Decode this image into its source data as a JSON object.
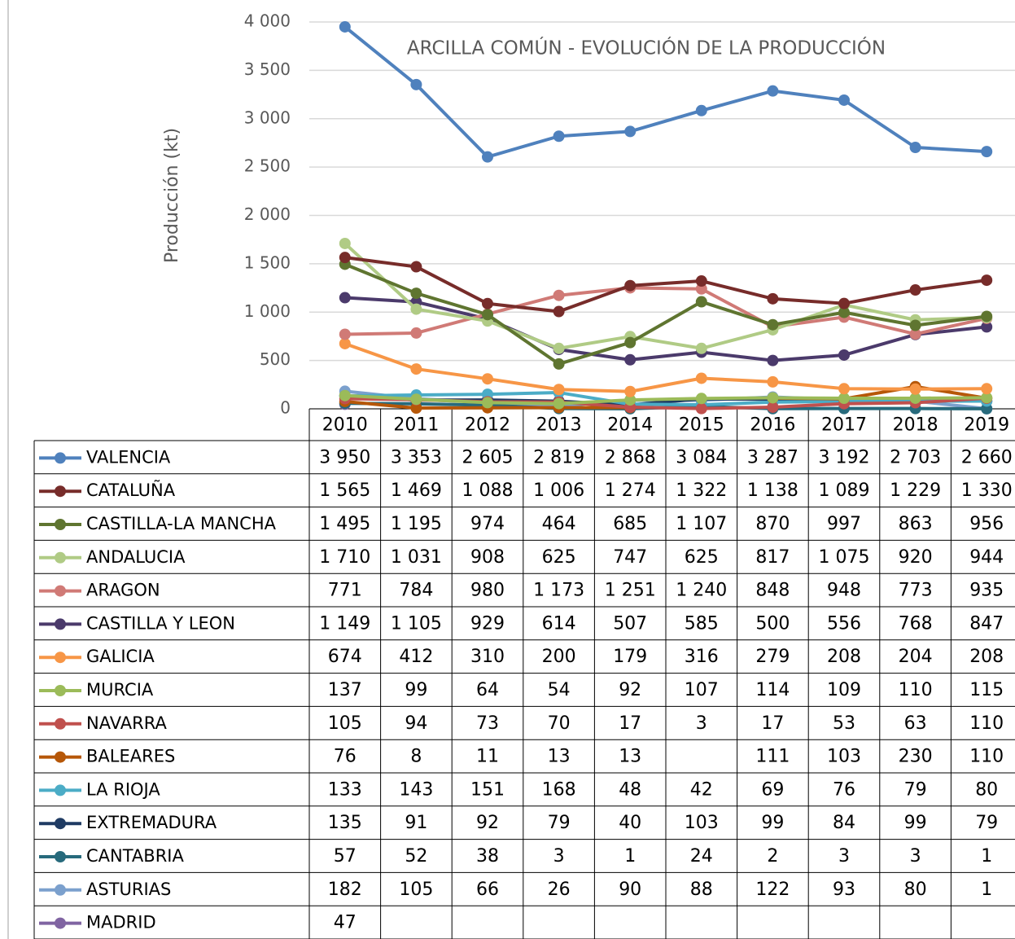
{
  "chart_data": {
    "type": "line",
    "title": "ARCILLA COMÚN - EVOLUCIÓN DE LA PRODUCCIÓN",
    "y_label": "Producción (kt)",
    "categories": [
      "2010",
      "2011",
      "2012",
      "2013",
      "2014",
      "2015",
      "2016",
      "2017",
      "2018",
      "2019"
    ],
    "ylim": [
      0,
      4000
    ],
    "yticks": [
      0,
      500,
      {
        "value": 1000,
        "label": "1 000"
      },
      {
        "value": 1500,
        "label": "1 500"
      },
      {
        "value": 2000,
        "label": "2 000"
      },
      {
        "value": 2500,
        "label": "2 500"
      },
      {
        "value": 3000,
        "label": "3 000"
      },
      {
        "value": 3500,
        "label": "3 500"
      },
      {
        "value": 4000,
        "label": "4 000"
      }
    ],
    "grid": true,
    "series": [
      {
        "name": "VALENCIA",
        "color": "#4f81bd",
        "values": [
          3950,
          3353,
          2605,
          2819,
          2868,
          3084,
          3287,
          3192,
          2703,
          2660
        ],
        "value_labels": [
          "3 950",
          "3 353",
          "2 605",
          "2 819",
          "2 868",
          "3 084",
          "3 287",
          "3 192",
          "2 703",
          "2 660"
        ]
      },
      {
        "name": "CATALUÑA",
        "color": "#772c2a",
        "values": [
          1565,
          1469,
          1088,
          1006,
          1274,
          1322,
          1138,
          1089,
          1229,
          1330
        ],
        "value_labels": [
          "1 565",
          "1 469",
          "1 088",
          "1 006",
          "1 274",
          "1 322",
          "1 138",
          "1 089",
          "1 229",
          "1 330"
        ]
      },
      {
        "name": "CASTILLA-LA MANCHA",
        "color": "#5f7530",
        "values": [
          1495,
          1195,
          974,
          464,
          685,
          1107,
          870,
          997,
          863,
          956
        ],
        "value_labels": [
          "1 495",
          "1 195",
          "974",
          "464",
          "685",
          "1 107",
          "870",
          "997",
          "863",
          "956"
        ]
      },
      {
        "name": "ANDALUCIA",
        "color": "#b0cb85",
        "values": [
          1710,
          1031,
          908,
          625,
          747,
          625,
          817,
          1075,
          920,
          944
        ],
        "value_labels": [
          "1 710",
          "1 031",
          "908",
          "625",
          "747",
          "625",
          "817",
          "1 075",
          "920",
          "944"
        ]
      },
      {
        "name": "ARAGON",
        "color": "#d07a76",
        "values": [
          771,
          784,
          980,
          1173,
          1251,
          1240,
          848,
          948,
          773,
          935
        ],
        "value_labels": [
          "771",
          "784",
          "980",
          "1 173",
          "1 251",
          "1 240",
          "848",
          "948",
          "773",
          "935"
        ]
      },
      {
        "name": "CASTILLA Y LEON",
        "color": "#4b3a6b",
        "values": [
          1149,
          1105,
          929,
          614,
          507,
          585,
          500,
          556,
          768,
          847
        ],
        "value_labels": [
          "1 149",
          "1 105",
          "929",
          "614",
          "507",
          "585",
          "500",
          "556",
          "768",
          "847"
        ]
      },
      {
        "name": "GALICIA",
        "color": "#f79646",
        "values": [
          674,
          412,
          310,
          200,
          179,
          316,
          279,
          208,
          204,
          208
        ]
      },
      {
        "name": "MURCIA",
        "color": "#9bbb59",
        "values": [
          137,
          99,
          64,
          54,
          92,
          107,
          114,
          109,
          110,
          115
        ]
      },
      {
        "name": "NAVARRA",
        "color": "#c0504d",
        "values": [
          105,
          94,
          73,
          70,
          17,
          3,
          17,
          53,
          63,
          110
        ]
      },
      {
        "name": "BALEARES",
        "color": "#b65708",
        "values": [
          76,
          8,
          11,
          13,
          13,
          null,
          111,
          103,
          230,
          110
        ]
      },
      {
        "name": "LA RIOJA",
        "color": "#4bacc6",
        "values": [
          133,
          143,
          151,
          168,
          48,
          42,
          69,
          76,
          79,
          80
        ]
      },
      {
        "name": "EXTREMADURA",
        "color": "#1f3b63",
        "values": [
          135,
          91,
          92,
          79,
          40,
          103,
          99,
          84,
          99,
          79
        ]
      },
      {
        "name": "CANTABRIA",
        "color": "#276a7c",
        "values": [
          57,
          52,
          38,
          3,
          1,
          24,
          2,
          3,
          3,
          1
        ]
      },
      {
        "name": "ASTURIAS",
        "color": "#7ba0cd",
        "values": [
          182,
          105,
          66,
          26,
          90,
          88,
          122,
          93,
          80,
          1
        ]
      },
      {
        "name": "MADRID",
        "color": "#8064a2",
        "values": [
          47,
          null,
          null,
          null,
          null,
          null,
          null,
          null,
          null,
          null
        ]
      }
    ]
  }
}
